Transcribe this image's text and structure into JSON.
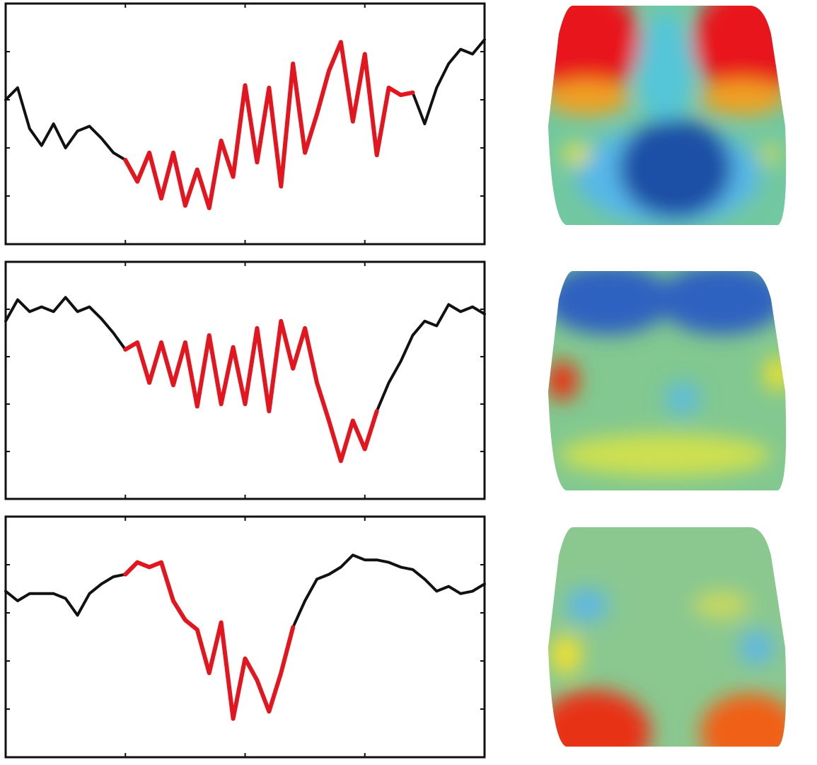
{
  "chart_data": [
    {
      "type": "line",
      "x": [
        0,
        2.5,
        5,
        7.5,
        10,
        12.5,
        15,
        17.5,
        20,
        22.5,
        25,
        27.5,
        30,
        32.5,
        35,
        37.5,
        40,
        42.5,
        45,
        47.5,
        50,
        52.5,
        55,
        57.5,
        60,
        62.5,
        65,
        67.5,
        70,
        72.5,
        75,
        77.5,
        80,
        82.5,
        85,
        87.5,
        90,
        92.5,
        95,
        97.5,
        100
      ],
      "series": [
        {
          "color": "#111111",
          "values": [
            60,
            65,
            48,
            41,
            50,
            40,
            47,
            49,
            44,
            38,
            35,
            null,
            null,
            null,
            null,
            null,
            null,
            null,
            null,
            null,
            null,
            null,
            null,
            null,
            null,
            null,
            null,
            null,
            null,
            null,
            null,
            null,
            null,
            null,
            63,
            50,
            65,
            75,
            81,
            79,
            85
          ]
        },
        {
          "color": "#e3151e",
          "values": [
            null,
            null,
            null,
            null,
            null,
            null,
            null,
            null,
            null,
            null,
            35,
            26,
            38,
            19,
            38,
            16,
            31,
            15,
            43,
            28,
            66,
            34,
            65,
            24,
            75,
            38,
            54,
            72,
            84,
            51,
            79,
            37,
            65,
            62,
            63,
            null,
            null,
            null,
            null,
            null,
            null
          ]
        }
      ],
      "xlim": [
        0,
        100
      ],
      "xticks": [
        25,
        50,
        75
      ],
      "ylim": [
        0,
        100
      ],
      "yticks": [
        20,
        40,
        60,
        80
      ]
    },
    {
      "type": "line",
      "x": [
        0,
        2.5,
        5,
        7.5,
        10,
        12.5,
        15,
        17.5,
        20,
        22.5,
        25,
        27.5,
        30,
        32.5,
        35,
        37.5,
        40,
        42.5,
        45,
        47.5,
        50,
        52.5,
        55,
        57.5,
        60,
        62.5,
        65,
        67.5,
        70,
        72.5,
        75,
        77.5,
        80,
        82.5,
        85,
        87.5,
        90,
        92.5,
        95,
        97.5,
        100
      ],
      "series": [
        {
          "color": "#111111",
          "values": [
            75,
            84,
            79,
            81,
            79,
            85,
            79,
            81,
            76,
            70,
            63,
            null,
            null,
            null,
            null,
            null,
            null,
            null,
            null,
            null,
            null,
            null,
            null,
            null,
            null,
            null,
            null,
            null,
            null,
            null,
            null,
            37,
            49,
            58,
            69,
            75,
            73,
            82,
            79,
            81,
            78
          ]
        },
        {
          "color": "#e3151e",
          "values": [
            null,
            null,
            null,
            null,
            null,
            null,
            null,
            null,
            null,
            null,
            63,
            66,
            49,
            66,
            48,
            66,
            39,
            69,
            40,
            64,
            40,
            72,
            37,
            75,
            55,
            72,
            49,
            33,
            16,
            33,
            21,
            37,
            null,
            null,
            null,
            null,
            null,
            null,
            null,
            null,
            null
          ]
        }
      ],
      "xlim": [
        0,
        100
      ],
      "xticks": [
        25,
        50,
        75
      ],
      "ylim": [
        0,
        100
      ],
      "yticks": [
        20,
        40,
        60,
        80
      ]
    },
    {
      "type": "line",
      "x": [
        0,
        2.5,
        5,
        7.5,
        10,
        12.5,
        15,
        17.5,
        20,
        22.5,
        25,
        27.5,
        30,
        32.5,
        35,
        37.5,
        40,
        42.5,
        45,
        47.5,
        50,
        52.5,
        55,
        57.5,
        60,
        62.5,
        65,
        67.5,
        70,
        72.5,
        75,
        77.5,
        80,
        82.5,
        85,
        87.5,
        90,
        92.5,
        95,
        97.5,
        100
      ],
      "series": [
        {
          "color": "#111111",
          "values": [
            69,
            65,
            68,
            68,
            68,
            66,
            59,
            68,
            72,
            75,
            76,
            null,
            null,
            null,
            null,
            null,
            null,
            null,
            null,
            null,
            null,
            null,
            null,
            null,
            54,
            65,
            74,
            76,
            79,
            84,
            82,
            82,
            81,
            79,
            78,
            74,
            69,
            71,
            68,
            69,
            72
          ]
        },
        {
          "color": "#e3151e",
          "values": [
            null,
            null,
            null,
            null,
            null,
            null,
            null,
            null,
            null,
            null,
            76,
            81,
            79,
            81,
            65,
            57,
            53,
            35,
            56,
            16,
            41,
            32,
            19,
            35,
            54,
            null,
            null,
            null,
            null,
            null,
            null,
            null,
            null,
            null,
            null,
            null,
            null,
            null,
            null,
            null,
            null
          ]
        }
      ],
      "xlim": [
        0,
        100
      ],
      "xticks": [
        25,
        50,
        75
      ],
      "ylim": [
        0,
        100
      ],
      "yticks": [
        20,
        40,
        60,
        80
      ]
    }
  ]
}
